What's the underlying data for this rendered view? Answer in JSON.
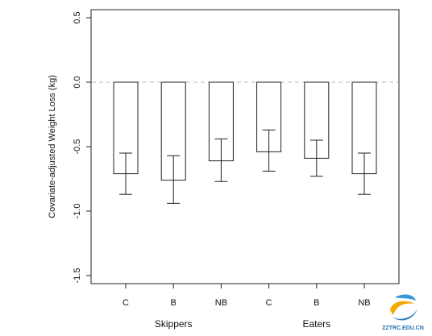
{
  "chart_data": {
    "type": "bar",
    "ylabel": "Covariate-adjusted Weight Loss (kg)",
    "xlabel": "",
    "ylim": [
      -1.5,
      0.5
    ],
    "yticks": [
      -1.5,
      -1.0,
      -0.5,
      0.0,
      0.5
    ],
    "ytick_labels": [
      "-1.5",
      "-1.0",
      "-0.5",
      "0.0",
      "0.5"
    ],
    "reference_line": 0.0,
    "grid": false,
    "categories": [
      "C",
      "B",
      "NB",
      "C",
      "B",
      "NB"
    ],
    "groups": [
      {
        "label": "Skippers",
        "categories": [
          "C",
          "B",
          "NB"
        ]
      },
      {
        "label": "Eaters",
        "categories": [
          "C",
          "B",
          "NB"
        ]
      }
    ],
    "values": [
      -0.71,
      -0.76,
      -0.61,
      -0.54,
      -0.59,
      -0.71
    ],
    "error_low": [
      -0.87,
      -0.94,
      -0.77,
      -0.69,
      -0.73,
      -0.87
    ],
    "error_high": [
      -0.55,
      -0.57,
      -0.44,
      -0.37,
      -0.45,
      -0.55
    ]
  },
  "watermark": {
    "text": "ZZTRC.EDU.CN",
    "icon": "zztrc-logo-icon"
  }
}
